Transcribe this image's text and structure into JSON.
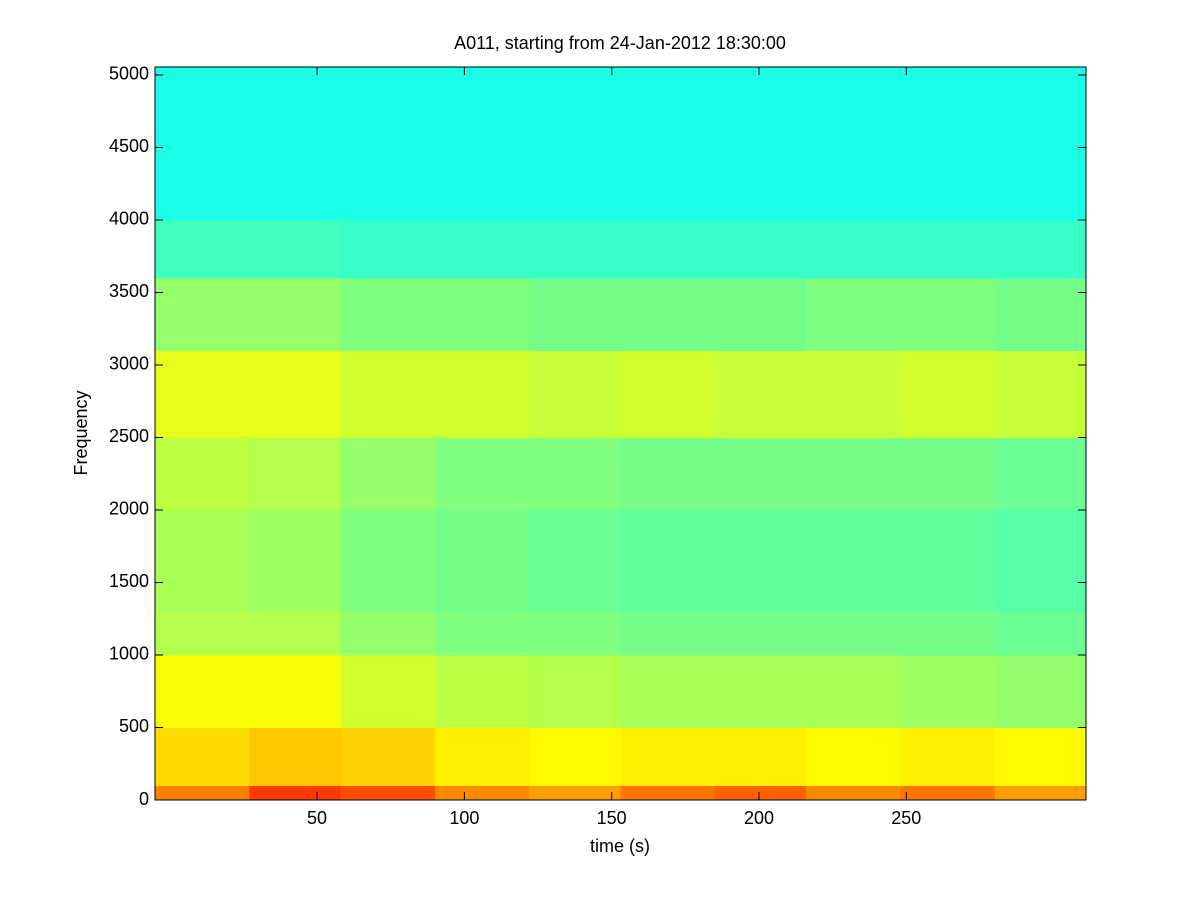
{
  "chart_data": {
    "type": "spectrogram",
    "title": "A011, starting from 24-Jan-2012 18:30:00",
    "xlabel": "time (s)",
    "ylabel": "Frequency",
    "xlim": [
      -5,
      311
    ],
    "ylim": [
      0,
      5055
    ],
    "xticks": [
      50,
      100,
      150,
      200,
      250
    ],
    "yticks": [
      0,
      500,
      1000,
      1500,
      2000,
      2500,
      3000,
      3500,
      4000,
      4500,
      5000
    ],
    "colormap": "jet",
    "x_edges": [
      -5,
      27,
      58,
      90,
      122,
      153,
      185,
      216,
      248,
      280,
      311
    ],
    "y_edges": [
      0,
      100,
      500,
      1000,
      1300,
      2000,
      2500,
      3100,
      3600,
      4000,
      5055
    ],
    "z": [
      [
        0.75,
        0.82,
        0.8,
        0.74,
        0.72,
        0.76,
        0.78,
        0.74,
        0.76,
        0.72
      ],
      [
        0.66,
        0.68,
        0.67,
        0.64,
        0.63,
        0.64,
        0.64,
        0.63,
        0.64,
        0.63
      ],
      [
        0.62,
        0.62,
        0.58,
        0.56,
        0.55,
        0.54,
        0.54,
        0.54,
        0.53,
        0.52
      ],
      [
        0.55,
        0.55,
        0.52,
        0.5,
        0.5,
        0.49,
        0.49,
        0.49,
        0.49,
        0.48
      ],
      [
        0.54,
        0.53,
        0.5,
        0.49,
        0.48,
        0.47,
        0.47,
        0.47,
        0.47,
        0.46
      ],
      [
        0.56,
        0.55,
        0.52,
        0.5,
        0.5,
        0.49,
        0.49,
        0.49,
        0.49,
        0.48
      ],
      [
        0.6,
        0.6,
        0.58,
        0.58,
        0.57,
        0.58,
        0.57,
        0.57,
        0.58,
        0.57
      ],
      [
        0.52,
        0.52,
        0.5,
        0.5,
        0.49,
        0.49,
        0.49,
        0.5,
        0.5,
        0.49
      ],
      [
        0.44,
        0.44,
        0.43,
        0.43,
        0.43,
        0.43,
        0.43,
        0.43,
        0.43,
        0.43
      ],
      [
        0.4,
        0.4,
        0.4,
        0.4,
        0.4,
        0.4,
        0.4,
        0.4,
        0.4,
        0.4
      ]
    ]
  }
}
